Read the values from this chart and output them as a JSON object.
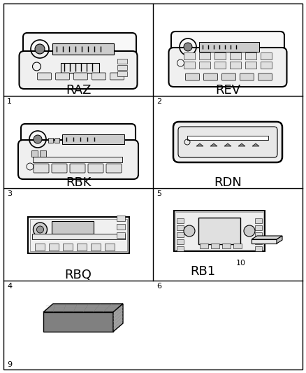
{
  "background_color": "#ffffff",
  "grid_color": "#000000",
  "label_fontsize": 13,
  "num_fontsize": 8,
  "figsize": [
    4.38,
    5.33
  ],
  "dpi": 100,
  "cells": [
    {
      "row": 0,
      "col": 0,
      "label": "RAZ",
      "num": "1"
    },
    {
      "row": 0,
      "col": 1,
      "label": "REV",
      "num": "2"
    },
    {
      "row": 1,
      "col": 0,
      "label": "RBK",
      "num": "3"
    },
    {
      "row": 1,
      "col": 1,
      "label": "RDN",
      "num": "5"
    },
    {
      "row": 2,
      "col": 0,
      "label": "RBQ",
      "num": "4"
    },
    {
      "row": 2,
      "col": 1,
      "label": "RB1",
      "num": "6",
      "extra_num": "10"
    },
    {
      "row": 3,
      "col": 0,
      "label": "",
      "num": "9"
    }
  ]
}
